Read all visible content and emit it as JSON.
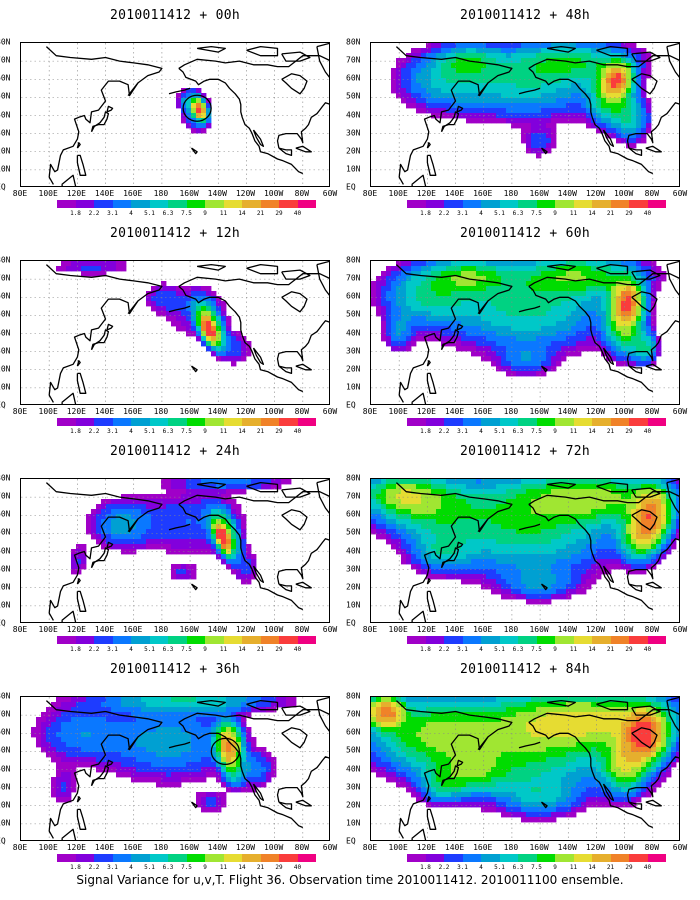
{
  "caption": "Signal Variance for u,v,T. Flight 36. Observation time 2010011412. 2010011100 ensemble.",
  "lat_labels": [
    "80N",
    "70N",
    "60N",
    "50N",
    "40N",
    "30N",
    "20N",
    "10N",
    "EQ"
  ],
  "lon_labels": [
    "80E",
    "100E",
    "120E",
    "140E",
    "160E",
    "180",
    "160W",
    "140W",
    "120W",
    "100W",
    "80W",
    "60W"
  ],
  "colorbar": {
    "labels": [
      "1.8",
      "2.2",
      "3.1",
      "4",
      "5.1",
      "6.3",
      "7.5",
      "9",
      "11",
      "14",
      "21",
      "29",
      "40"
    ],
    "colors": [
      "#a000c8",
      "#8200dc",
      "#1e3cff",
      "#0a78ff",
      "#00a0d2",
      "#00c8c8",
      "#00d282",
      "#00dc00",
      "#a0e632",
      "#e6dc32",
      "#e6af2d",
      "#f08228",
      "#fa3c3c",
      "#f00082"
    ]
  },
  "panels": [
    {
      "title": "2010011412 + 00h",
      "intensity": 0
    },
    {
      "title": "2010011412 + 12h",
      "intensity": 1
    },
    {
      "title": "2010011412 + 24h",
      "intensity": 2
    },
    {
      "title": "2010011412 + 36h",
      "intensity": 3
    },
    {
      "title": "2010011412 + 48h",
      "intensity": 4
    },
    {
      "title": "2010011412 + 60h",
      "intensity": 5
    },
    {
      "title": "2010011412 + 72h",
      "intensity": 6
    },
    {
      "title": "2010011412 + 84h",
      "intensity": 7
    }
  ]
}
